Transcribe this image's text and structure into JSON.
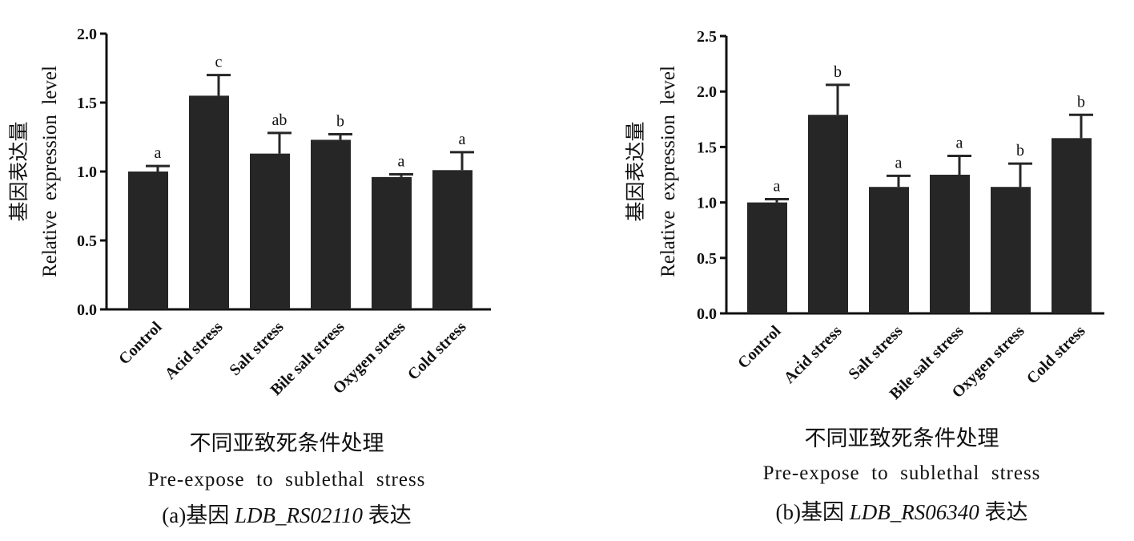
{
  "chart_data": [
    {
      "type": "bar",
      "ylabel_cn": "基因表达量",
      "ylabel_en": "Relative  expression  level",
      "xlabel_cn": "不同亚致死条件处理",
      "xlabel_en": "Pre-expose  to  sublethal  stress",
      "caption_prefix": "(a)基因 ",
      "caption_gene": "LDB_RS02110",
      "caption_suffix": " 表达",
      "ylim": [
        0,
        2.0
      ],
      "yticks": [
        "0.0",
        "0.5",
        "1.0",
        "1.5",
        "2.0"
      ],
      "ytick_values": [
        0,
        0.5,
        1.0,
        1.5,
        2.0
      ],
      "categories": [
        "Control",
        "Acid stress",
        "Salt stress",
        "Bile salt stress",
        "Oxygen stress",
        "Cold stress"
      ],
      "values": [
        1.0,
        1.55,
        1.13,
        1.23,
        0.96,
        1.01
      ],
      "errors": [
        0.04,
        0.15,
        0.15,
        0.04,
        0.02,
        0.13
      ],
      "significance": [
        "a",
        "c",
        "ab",
        "b",
        "a",
        "a"
      ],
      "bar_color": "#262626"
    },
    {
      "type": "bar",
      "ylabel_cn": "基因表达量",
      "ylabel_en": "Relative  expression  level",
      "xlabel_cn": "不同亚致死条件处理",
      "xlabel_en": "Pre-expose  to  sublethal  stress",
      "caption_prefix": "(b)基因 ",
      "caption_gene": "LDB_RS06340",
      "caption_suffix": " 表达",
      "ylim": [
        0,
        2.5
      ],
      "yticks": [
        "0.0",
        "0.5",
        "1.0",
        "1.5",
        "2.0",
        "2.5"
      ],
      "ytick_values": [
        0,
        0.5,
        1.0,
        1.5,
        2.0,
        2.5
      ],
      "categories": [
        "Control",
        "Acid stress",
        "Salt stress",
        "Bile salt stress",
        "Oxygen stress",
        "Cold stress"
      ],
      "values": [
        1.0,
        1.79,
        1.14,
        1.25,
        1.14,
        1.58
      ],
      "errors": [
        0.03,
        0.27,
        0.1,
        0.17,
        0.21,
        0.21
      ],
      "significance": [
        "a",
        "b",
        "a",
        "a",
        "b",
        "b"
      ],
      "bar_color": "#262626"
    }
  ]
}
